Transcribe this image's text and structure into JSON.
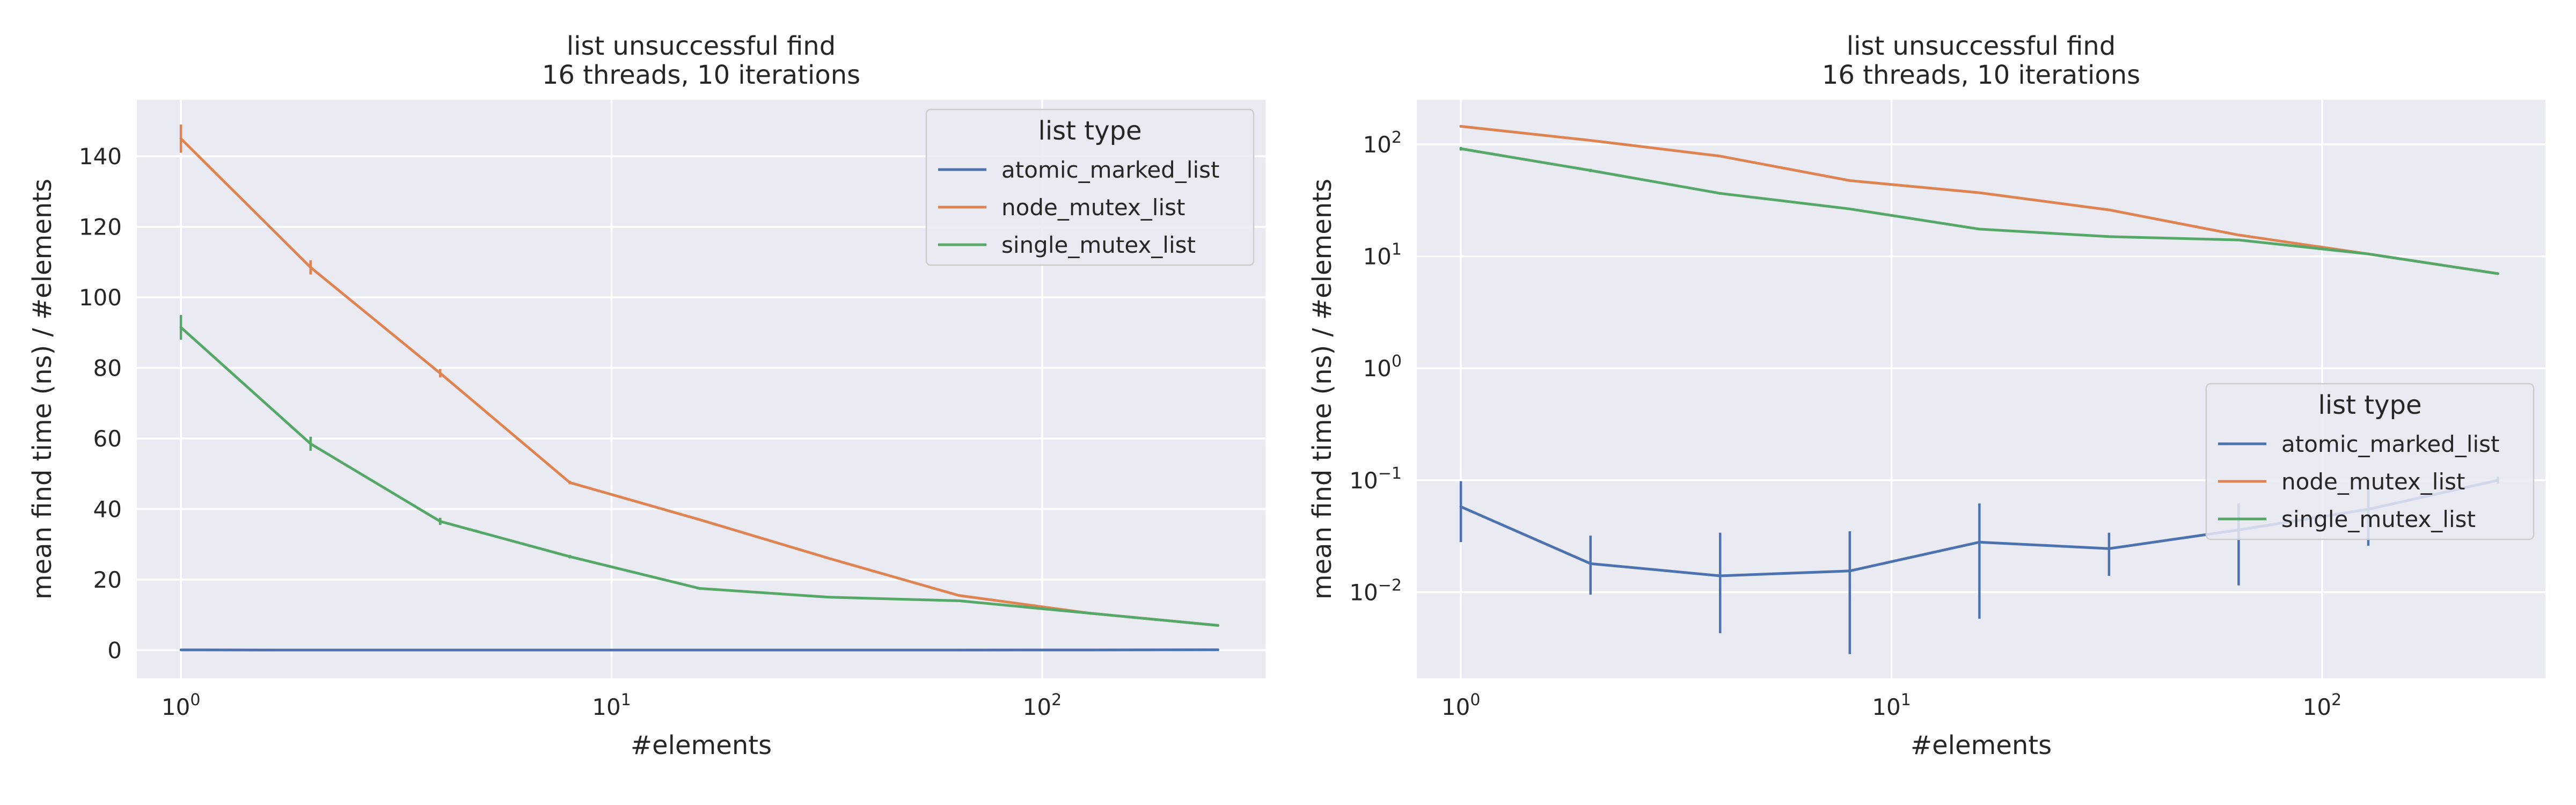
{
  "chart_data": [
    {
      "type": "line",
      "title": [
        "list unsuccessful find",
        "16 threads, 10 iterations"
      ],
      "xlabel": "#elements",
      "ylabel": "mean find time (ns) / #elements",
      "xscale": "log",
      "yscale": "linear",
      "xlim": [
        0.79,
        330
      ],
      "ylim": [
        -8,
        156
      ],
      "xticks": [
        1,
        10,
        100
      ],
      "xtick_labels": [
        [
          "10",
          "0"
        ],
        [
          "10",
          "1"
        ],
        [
          "10",
          "2"
        ]
      ],
      "yticks": [
        0,
        20,
        40,
        60,
        80,
        100,
        120,
        140
      ],
      "ytick_labels": [
        "0",
        "20",
        "40",
        "60",
        "80",
        "100",
        "120",
        "140"
      ],
      "grid": true,
      "legend": {
        "title": "list type",
        "placement": "upper-right"
      },
      "series": [
        {
          "name": "atomic_marked_list",
          "color": "#4c72b0",
          "x": [
            1,
            2,
            4,
            8,
            16,
            32,
            64,
            128,
            256
          ],
          "y": [
            0.06,
            0.02,
            0.014,
            0.016,
            0.028,
            0.024,
            0.036,
            0.055,
            0.1
          ],
          "err": [
            0,
            0,
            0,
            0,
            0,
            0,
            0,
            0,
            0
          ]
        },
        {
          "name": "node_mutex_list",
          "color": "#dd8452",
          "x": [
            1,
            2,
            4,
            8,
            16,
            32,
            64,
            128,
            256
          ],
          "y": [
            145,
            108.5,
            78.5,
            47.5,
            37,
            26,
            15.5,
            10.5,
            7
          ],
          "err": [
            4,
            2,
            1.2,
            0.5,
            0.3,
            0.2,
            0.2,
            0.1,
            0.1
          ]
        },
        {
          "name": "single_mutex_list",
          "color": "#55a868",
          "x": [
            1,
            2,
            4,
            8,
            16,
            32,
            64,
            128,
            256
          ],
          "y": [
            91.5,
            58.5,
            36.5,
            26.5,
            17.5,
            15,
            14,
            10.5,
            7
          ],
          "err": [
            3.5,
            2,
            1,
            0.5,
            0.3,
            0.2,
            0.2,
            0.1,
            0.1
          ]
        }
      ]
    },
    {
      "type": "line",
      "title": [
        "list unsuccessful find",
        "16 threads, 10 iterations"
      ],
      "xlabel": "#elements",
      "ylabel": "mean find time (ns) / #elements",
      "xscale": "log",
      "yscale": "log",
      "xlim": [
        0.79,
        330
      ],
      "ylim": [
        0.0017,
        250
      ],
      "xticks": [
        1,
        10,
        100
      ],
      "xtick_labels": [
        [
          "10",
          "0"
        ],
        [
          "10",
          "1"
        ],
        [
          "10",
          "2"
        ]
      ],
      "yticks": [
        0.01,
        0.1,
        1,
        10,
        100
      ],
      "ytick_labels": [
        [
          "10",
          "−2"
        ],
        [
          "10",
          "−1"
        ],
        [
          "10",
          "0"
        ],
        [
          "10",
          "1"
        ],
        [
          "10",
          "2"
        ]
      ],
      "grid": true,
      "legend": {
        "title": "list type",
        "placement": "center-right"
      },
      "series": [
        {
          "name": "atomic_marked_list",
          "color": "#4c72b0",
          "x": [
            1,
            2,
            4,
            8,
            16,
            32,
            64,
            128,
            256
          ],
          "y": [
            0.058,
            0.018,
            0.014,
            0.0155,
            0.028,
            0.0245,
            0.036,
            0.055,
            0.1
          ],
          "err_lo": [
            0.028,
            0.0095,
            0.0043,
            0.0028,
            0.0058,
            0.014,
            0.0115,
            0.026,
            0.093
          ],
          "err_hi": [
            0.098,
            0.032,
            0.034,
            0.035,
            0.062,
            0.034,
            0.062,
            0.085,
            0.108
          ]
        },
        {
          "name": "node_mutex_list",
          "color": "#dd8452",
          "x": [
            1,
            2,
            4,
            8,
            16,
            32,
            64,
            128,
            256
          ],
          "y": [
            145,
            108.5,
            78.5,
            47.5,
            37,
            26,
            15.5,
            10.5,
            7
          ],
          "err_lo": [
            141,
            106.5,
            77.3,
            47,
            36.7,
            25.8,
            15.3,
            10.4,
            6.9
          ],
          "err_hi": [
            149,
            110.5,
            79.7,
            48,
            37.3,
            26.2,
            15.7,
            10.6,
            7.1
          ]
        },
        {
          "name": "single_mutex_list",
          "color": "#55a868",
          "x": [
            1,
            2,
            4,
            8,
            16,
            32,
            64,
            128,
            256
          ],
          "y": [
            91.5,
            58.5,
            36.5,
            26.5,
            17.5,
            15,
            14,
            10.5,
            7
          ],
          "err_lo": [
            88,
            56.5,
            35.5,
            26,
            17.2,
            14.8,
            13.8,
            10.4,
            6.9
          ],
          "err_hi": [
            95,
            60.5,
            37.5,
            27,
            17.8,
            15.2,
            14.2,
            10.6,
            7.1
          ]
        }
      ]
    }
  ]
}
